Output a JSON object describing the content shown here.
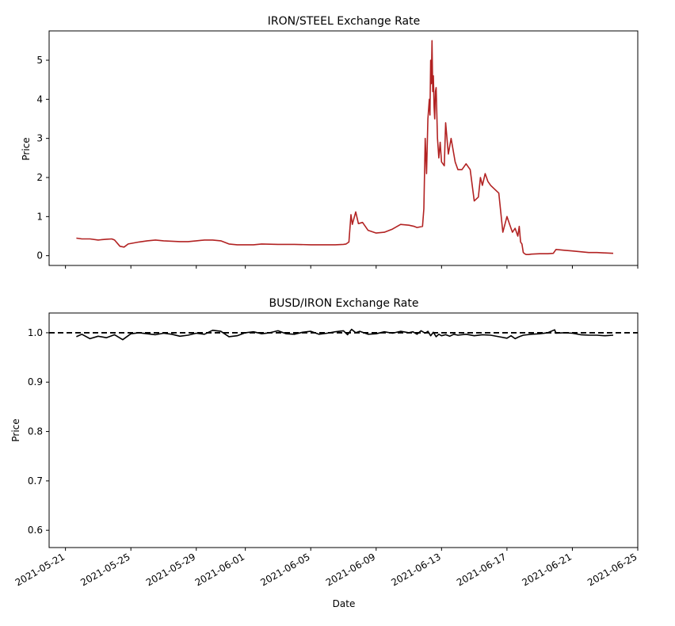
{
  "chart_data": [
    {
      "type": "line",
      "title": "IRON/STEEL Exchange Rate",
      "ylabel": "Price",
      "xlabel": "",
      "xlim": [
        "2021-05-20",
        "2021-06-25"
      ],
      "ylim": [
        -0.25,
        5.75
      ],
      "yticks": [
        0,
        1,
        2,
        3,
        4,
        5
      ],
      "ytick_labels": [
        "0",
        "1",
        "2",
        "3",
        "4",
        "5"
      ],
      "grid": false,
      "color": "#b22222",
      "series": [
        {
          "x": [
            "2021-05-21 16:00",
            "2021-05-22 00:00",
            "2021-05-22 12:00",
            "2021-05-23 00:00",
            "2021-05-23 12:00",
            "2021-05-23 20:00",
            "2021-05-24 00:00",
            "2021-05-24 08:00",
            "2021-05-24 14:00",
            "2021-05-24 20:00",
            "2021-05-25 12:00",
            "2021-05-26 00:00",
            "2021-05-26 12:00",
            "2021-05-27 00:00",
            "2021-05-27 12:00",
            "2021-05-28 00:00",
            "2021-05-28 12:00",
            "2021-05-29 00:00",
            "2021-05-29 12:00",
            "2021-05-30 00:00",
            "2021-05-30 12:00",
            "2021-05-31 00:00",
            "2021-05-31 12:00",
            "2021-06-01 00:00",
            "2021-06-01 12:00",
            "2021-06-02 00:00",
            "2021-06-03 00:00",
            "2021-06-04 00:00",
            "2021-06-05 00:00",
            "2021-06-06 00:00",
            "2021-06-06 12:00",
            "2021-06-07 00:00",
            "2021-06-07 04:00",
            "2021-06-07 08:00",
            "2021-06-07 11:00",
            "2021-06-07 13:00",
            "2021-06-07 18:00",
            "2021-06-07 22:00",
            "2021-06-08 04:00",
            "2021-06-08 12:00",
            "2021-06-09 00:00",
            "2021-06-09 12:00",
            "2021-06-10 00:00",
            "2021-06-10 12:00",
            "2021-06-11 00:00",
            "2021-06-11 08:00",
            "2021-06-11 12:00",
            "2021-06-11 20:00",
            "2021-06-11 22:00",
            "2021-06-12 00:00",
            "2021-06-12 02:00",
            "2021-06-12 04:00",
            "2021-06-12 06:00",
            "2021-06-12 07:00",
            "2021-06-12 08:00",
            "2021-06-12 09:00",
            "2021-06-12 10:00",
            "2021-06-12 11:00",
            "2021-06-12 12:00",
            "2021-06-12 13:00",
            "2021-06-12 14:00",
            "2021-06-12 15:00",
            "2021-06-12 16:00",
            "2021-06-12 18:00",
            "2021-06-12 20:00",
            "2021-06-12 22:00",
            "2021-06-13 00:00",
            "2021-06-13 04:00",
            "2021-06-13 06:00",
            "2021-06-13 10:00",
            "2021-06-13 14:00",
            "2021-06-13 16:00",
            "2021-06-13 20:00",
            "2021-06-14 00:00",
            "2021-06-14 06:00",
            "2021-06-14 12:00",
            "2021-06-14 18:00",
            "2021-06-15 00:00",
            "2021-06-15 06:00",
            "2021-06-15 09:00",
            "2021-06-15 12:00",
            "2021-06-15 16:00",
            "2021-06-15 20:00",
            "2021-06-16 00:00",
            "2021-06-16 06:00",
            "2021-06-16 12:00",
            "2021-06-16 18:00",
            "2021-06-17 00:00",
            "2021-06-17 04:00",
            "2021-06-17 08:00",
            "2021-06-17 12:00",
            "2021-06-17 16:00",
            "2021-06-17 18:00",
            "2021-06-17 20:00",
            "2021-06-17 22:00",
            "2021-06-18 00:00",
            "2021-06-18 02:00",
            "2021-06-18 04:00",
            "2021-06-18 08:00",
            "2021-06-18 12:00",
            "2021-06-19 00:00",
            "2021-06-19 12:00",
            "2021-06-19 20:00",
            "2021-06-20 00:00",
            "2021-06-20 12:00",
            "2021-06-21 00:00",
            "2021-06-21 12:00",
            "2021-06-22 00:00",
            "2021-06-22 12:00",
            "2021-06-23 00:00",
            "2021-06-23 12:00"
          ],
          "y": [
            0.45,
            0.43,
            0.43,
            0.4,
            0.42,
            0.43,
            0.4,
            0.24,
            0.22,
            0.3,
            0.35,
            0.38,
            0.4,
            0.38,
            0.37,
            0.36,
            0.36,
            0.38,
            0.4,
            0.4,
            0.38,
            0.3,
            0.28,
            0.28,
            0.28,
            0.3,
            0.29,
            0.29,
            0.28,
            0.28,
            0.28,
            0.29,
            0.3,
            0.35,
            1.05,
            0.8,
            1.12,
            0.82,
            0.85,
            0.65,
            0.58,
            0.6,
            0.68,
            0.8,
            0.78,
            0.75,
            0.72,
            0.75,
            1.2,
            3.0,
            2.1,
            3.5,
            4.0,
            3.6,
            5.0,
            4.4,
            5.5,
            4.2,
            4.6,
            3.8,
            3.5,
            4.2,
            4.3,
            3.0,
            2.5,
            2.9,
            2.4,
            2.3,
            3.4,
            2.6,
            3.0,
            2.8,
            2.4,
            2.2,
            2.2,
            2.35,
            2.2,
            1.4,
            1.5,
            2.0,
            1.8,
            2.1,
            1.9,
            1.8,
            1.7,
            1.6,
            0.6,
            1.0,
            0.8,
            0.6,
            0.7,
            0.5,
            0.75,
            0.35,
            0.3,
            0.08,
            0.05,
            0.03,
            0.03,
            0.04,
            0.05,
            0.05,
            0.06,
            0.16,
            0.14,
            0.12,
            0.1,
            0.08,
            0.08,
            0.07,
            0.06
          ]
        }
      ]
    },
    {
      "type": "line",
      "title": "BUSD/IRON Exchange Rate",
      "ylabel": "Price",
      "xlabel": "Date",
      "xlim": [
        "2021-05-20",
        "2021-06-25"
      ],
      "ylim": [
        0.565,
        1.04
      ],
      "yticks": [
        0.6,
        0.7,
        0.8,
        0.9,
        1.0
      ],
      "ytick_labels": [
        "0.6",
        "0.7",
        "0.8",
        "0.9",
        "1.0"
      ],
      "xticks": [
        "2021-05-21",
        "2021-05-25",
        "2021-05-29",
        "2021-06-01",
        "2021-06-05",
        "2021-06-09",
        "2021-06-13",
        "2021-06-17",
        "2021-06-21",
        "2021-06-25"
      ],
      "xtick_labels": [
        "2021-05-21",
        "2021-05-25",
        "2021-05-29",
        "2021-06-01",
        "2021-06-05",
        "2021-06-09",
        "2021-06-13",
        "2021-06-17",
        "2021-06-21",
        "2021-06-25"
      ],
      "grid": false,
      "color": "#000000",
      "reference_line": {
        "y": 1.0,
        "style": "dashed",
        "color": "#000000"
      },
      "series": [
        {
          "x": [
            "2021-05-21 16:00",
            "2021-05-22 00:00",
            "2021-05-22 12:00",
            "2021-05-23 00:00",
            "2021-05-23 12:00",
            "2021-05-24 00:00",
            "2021-05-24 12:00",
            "2021-05-25 00:00",
            "2021-05-25 12:00",
            "2021-05-26 00:00",
            "2021-05-26 12:00",
            "2021-05-27 00:00",
            "2021-05-27 12:00",
            "2021-05-28 00:00",
            "2021-05-28 12:00",
            "2021-05-29 00:00",
            "2021-05-29 12:00",
            "2021-05-30 00:00",
            "2021-05-30 12:00",
            "2021-05-31 00:00",
            "2021-05-31 12:00",
            "2021-06-01 00:00",
            "2021-06-01 12:00",
            "2021-06-02 00:00",
            "2021-06-02 12:00",
            "2021-06-03 00:00",
            "2021-06-03 12:00",
            "2021-06-04 00:00",
            "2021-06-04 12:00",
            "2021-06-05 00:00",
            "2021-06-05 12:00",
            "2021-06-06 00:00",
            "2021-06-06 12:00",
            "2021-06-07 00:00",
            "2021-06-07 06:00",
            "2021-06-07 12:00",
            "2021-06-07 18:00",
            "2021-06-08 00:00",
            "2021-06-08 12:00",
            "2021-06-09 00:00",
            "2021-06-09 12:00",
            "2021-06-10 00:00",
            "2021-06-10 12:00",
            "2021-06-11 00:00",
            "2021-06-11 06:00",
            "2021-06-11 12:00",
            "2021-06-11 18:00",
            "2021-06-12 00:00",
            "2021-06-12 04:00",
            "2021-06-12 08:00",
            "2021-06-12 12:00",
            "2021-06-12 16:00",
            "2021-06-12 20:00",
            "2021-06-13 00:00",
            "2021-06-13 06:00",
            "2021-06-13 12:00",
            "2021-06-13 18:00",
            "2021-06-14 00:00",
            "2021-06-14 12:00",
            "2021-06-15 00:00",
            "2021-06-15 12:00",
            "2021-06-16 00:00",
            "2021-06-16 12:00",
            "2021-06-17 00:00",
            "2021-06-17 06:00",
            "2021-06-17 12:00",
            "2021-06-17 18:00",
            "2021-06-18 00:00",
            "2021-06-18 12:00",
            "2021-06-19 00:00",
            "2021-06-19 12:00",
            "2021-06-19 22:00",
            "2021-06-20 00:00",
            "2021-06-20 12:00",
            "2021-06-21 00:00",
            "2021-06-21 12:00",
            "2021-06-22 00:00",
            "2021-06-22 12:00",
            "2021-06-23 00:00",
            "2021-06-23 12:00"
          ],
          "y": [
            0.992,
            0.997,
            0.988,
            0.993,
            0.99,
            0.996,
            0.986,
            0.998,
            1.0,
            0.998,
            0.996,
            0.999,
            0.997,
            0.993,
            0.995,
            0.999,
            0.997,
            1.005,
            1.003,
            0.992,
            0.994,
            1.0,
            1.002,
            0.998,
            1.0,
            1.004,
            0.998,
            0.997,
            1.001,
            1.003,
            0.997,
            0.999,
            1.002,
            1.004,
            0.996,
            1.007,
            1.0,
            1.003,
            0.997,
            0.998,
            1.002,
            0.999,
            1.003,
            1.0,
            1.002,
            0.997,
            1.004,
            0.999,
            1.003,
            0.994,
            1.001,
            0.992,
            0.997,
            0.994,
            0.996,
            0.993,
            0.997,
            0.995,
            0.997,
            0.994,
            0.996,
            0.995,
            0.992,
            0.989,
            0.994,
            0.988,
            0.992,
            0.995,
            0.997,
            0.998,
            1.0,
            1.006,
            0.999,
            1.0,
            0.999,
            0.996,
            0.995,
            0.995,
            0.994,
            0.995
          ]
        }
      ]
    }
  ]
}
